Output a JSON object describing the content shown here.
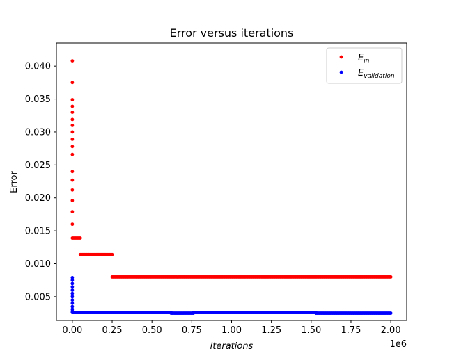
{
  "chart_data": {
    "type": "scatter",
    "title": "Error versus iterations",
    "xlabel": "iterations",
    "ylabel": "Error",
    "x_offset_label": "1e6",
    "xlim": [
      -100000,
      2100000
    ],
    "ylim": [
      0.0014,
      0.0435
    ],
    "x_ticks": [
      0,
      250000,
      500000,
      750000,
      1000000,
      1250000,
      1500000,
      1750000,
      2000000
    ],
    "x_tick_labels": [
      "0.00",
      "0.25",
      "0.50",
      "0.75",
      "1.00",
      "1.25",
      "1.50",
      "1.75",
      "2.00"
    ],
    "y_ticks": [
      0.005,
      0.01,
      0.015,
      0.02,
      0.025,
      0.03,
      0.035,
      0.04
    ],
    "y_tick_labels": [
      "0.005",
      "0.010",
      "0.015",
      "0.020",
      "0.025",
      "0.030",
      "0.035",
      "0.040"
    ],
    "grid": false,
    "legend_position": "top-right",
    "series": [
      {
        "name": "E_in",
        "legend_main": "E",
        "legend_sub": "in",
        "color": "#ff0000",
        "marker": "dot",
        "points": [
          [
            0,
            0.0408
          ],
          [
            0,
            0.0375
          ],
          [
            0,
            0.0349
          ],
          [
            0,
            0.0339
          ],
          [
            0,
            0.033
          ],
          [
            0,
            0.0319
          ],
          [
            0,
            0.031
          ],
          [
            0,
            0.03
          ],
          [
            0,
            0.0289
          ],
          [
            0,
            0.0278
          ],
          [
            0,
            0.0266
          ],
          [
            0,
            0.024
          ],
          [
            0,
            0.0227
          ],
          [
            0,
            0.0212
          ],
          [
            0,
            0.0196
          ],
          [
            0,
            0.0179
          ],
          [
            0,
            0.016
          ]
        ],
        "segments": [
          {
            "x_start": 0,
            "x_end": 50000,
            "y": 0.0139
          },
          {
            "x_start": 50000,
            "x_end": 250000,
            "y": 0.0114
          },
          {
            "x_start": 250000,
            "x_end": 2000000,
            "y": 0.008
          }
        ]
      },
      {
        "name": "E_validation",
        "legend_main": "E",
        "legend_sub": "validation",
        "color": "#0000ff",
        "marker": "dot",
        "points": [
          [
            0,
            0.0079
          ],
          [
            0,
            0.0075
          ],
          [
            0,
            0.007
          ],
          [
            0,
            0.0065
          ],
          [
            0,
            0.006
          ],
          [
            0,
            0.0055
          ],
          [
            0,
            0.005
          ],
          [
            0,
            0.0045
          ],
          [
            0,
            0.004
          ],
          [
            0,
            0.0035
          ],
          [
            0,
            0.0031
          ],
          [
            0,
            0.0028
          ]
        ],
        "segments": [
          {
            "x_start": 0,
            "x_end": 620000,
            "y": 0.0026
          },
          {
            "x_start": 620000,
            "x_end": 760000,
            "y": 0.0025
          },
          {
            "x_start": 760000,
            "x_end": 1530000,
            "y": 0.0026
          },
          {
            "x_start": 1530000,
            "x_end": 2000000,
            "y": 0.0025
          }
        ]
      }
    ]
  }
}
